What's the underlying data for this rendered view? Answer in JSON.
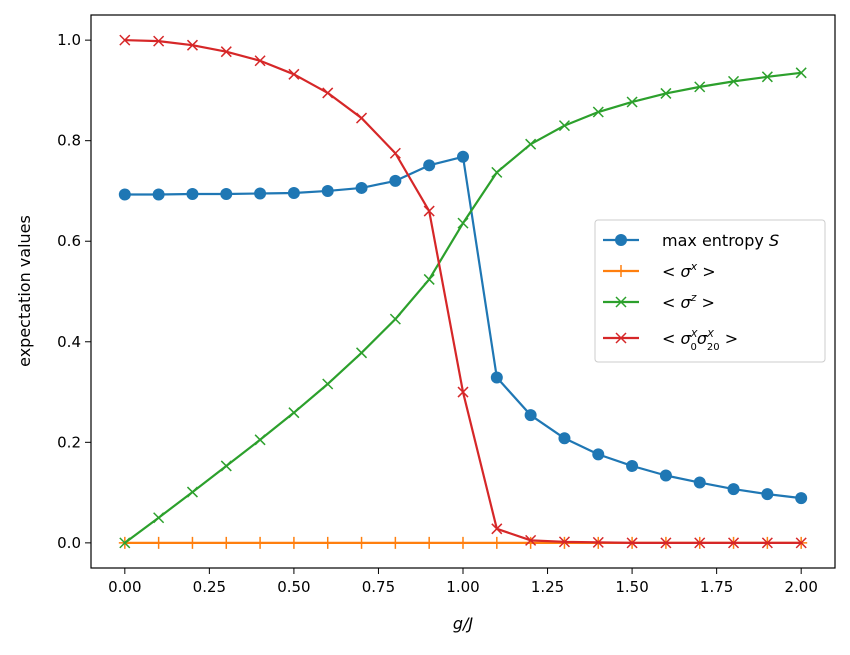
{
  "chart_data": {
    "type": "line",
    "xlabel": "g/J",
    "ylabel": "expectation values",
    "xlim": [
      -0.1,
      2.1
    ],
    "ylim": [
      -0.05,
      1.05
    ],
    "xticks": [
      "0.00",
      "0.25",
      "0.50",
      "0.75",
      "1.00",
      "1.25",
      "1.50",
      "1.75",
      "2.00"
    ],
    "yticks": [
      "0.0",
      "0.2",
      "0.4",
      "0.6",
      "0.8",
      "1.0"
    ],
    "grid": false,
    "legend_position": "center-right",
    "x": [
      0.0,
      0.1,
      0.2,
      0.3,
      0.4,
      0.5,
      0.6,
      0.7,
      0.8,
      0.9,
      1.0,
      1.1,
      1.2,
      1.3,
      1.4,
      1.5,
      1.6,
      1.7,
      1.8,
      1.9,
      2.0
    ],
    "series": [
      {
        "name": "max entropy S",
        "color": "#1f77b4",
        "marker": "circle",
        "values": [
          0.693,
          0.693,
          0.694,
          0.694,
          0.695,
          0.696,
          0.7,
          0.706,
          0.72,
          0.751,
          0.768,
          0.329,
          0.254,
          0.208,
          0.176,
          0.153,
          0.134,
          0.12,
          0.107,
          0.097,
          0.089
        ]
      },
      {
        "name": "< σ^x >",
        "color": "#ff7f0e",
        "marker": "plus",
        "values": [
          0.0,
          0.0,
          0.0,
          0.0,
          0.0,
          0.0,
          0.0,
          0.0,
          0.0,
          0.0,
          0.0,
          0.0,
          0.0,
          0.0,
          0.0,
          0.0,
          0.0,
          0.0,
          0.0,
          0.0,
          0.0
        ]
      },
      {
        "name": "< σ^z >",
        "color": "#2ca02c",
        "marker": "x",
        "values": [
          0.0,
          0.05,
          0.101,
          0.153,
          0.205,
          0.259,
          0.316,
          0.378,
          0.445,
          0.524,
          0.636,
          0.737,
          0.793,
          0.83,
          0.857,
          0.877,
          0.894,
          0.907,
          0.918,
          0.927,
          0.935
        ]
      },
      {
        "name": "< σ0^X σ20^X >",
        "color": "#d62728",
        "marker": "x",
        "values": [
          1.0,
          0.998,
          0.99,
          0.977,
          0.959,
          0.932,
          0.895,
          0.845,
          0.775,
          0.66,
          0.3,
          0.028,
          0.005,
          0.002,
          0.001,
          0.0,
          0.0,
          0.0,
          0.0,
          0.0,
          0.0
        ]
      }
    ]
  }
}
